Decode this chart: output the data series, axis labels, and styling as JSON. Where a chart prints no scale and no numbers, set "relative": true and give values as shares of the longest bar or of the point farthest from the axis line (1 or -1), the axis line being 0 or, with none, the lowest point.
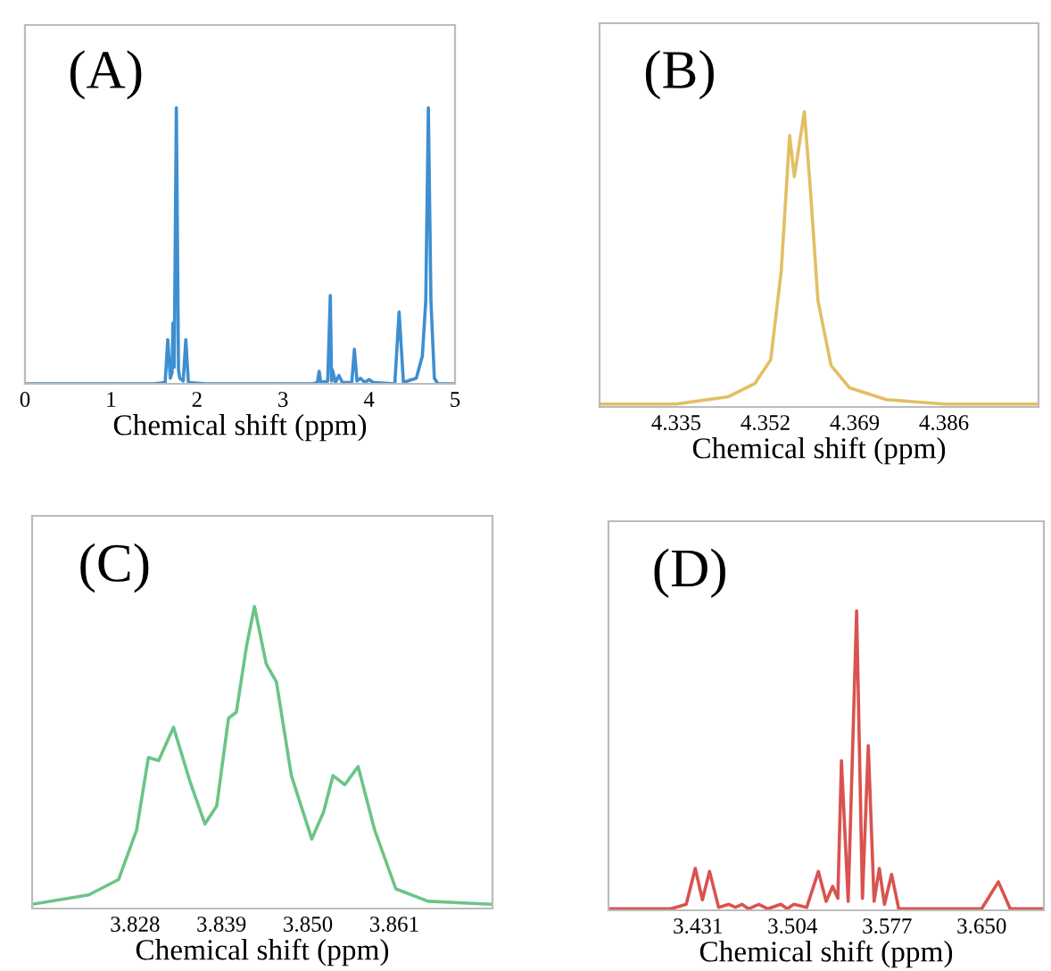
{
  "chart_data": [
    {
      "type": "line",
      "relative": true,
      "annotations": [
        "(A)"
      ],
      "xlabel": "Chemical shift (ppm)",
      "xlim": [
        0,
        5
      ],
      "xticks": [
        0,
        1,
        2,
        3,
        4,
        5
      ],
      "tick_labels": "x",
      "grid": false,
      "legend": false,
      "series": [
        {
          "color": "#3d8fd1",
          "x": [
            0,
            1.5,
            1.63,
            1.66,
            1.69,
            1.71,
            1.72,
            1.735,
            1.76,
            1.785,
            1.8,
            1.84,
            1.87,
            1.9,
            2.1,
            3.35,
            3.4,
            3.42,
            3.44,
            3.52,
            3.55,
            3.565,
            3.575,
            3.61,
            3.65,
            3.69,
            3.8,
            3.83,
            3.86,
            3.9,
            3.95,
            4.0,
            4.05,
            4.3,
            4.35,
            4.4,
            4.55,
            4.62,
            4.66,
            4.69,
            4.72,
            4.76,
            4.8,
            5
          ],
          "values": [
            0,
            0,
            0.005,
            0.16,
            0.02,
            0.04,
            0.22,
            0.06,
            1,
            0.05,
            0.02,
            0.01,
            0.16,
            0.005,
            0,
            0,
            0.005,
            0.045,
            0.005,
            0.01,
            0.32,
            0.01,
            0.05,
            0.005,
            0.03,
            0.005,
            0.005,
            0.125,
            0.01,
            0.02,
            0.005,
            0.015,
            0.005,
            0,
            0.26,
            0.005,
            0.02,
            0.1,
            0.3,
            1,
            0.3,
            0.02,
            0,
            0
          ]
        }
      ]
    },
    {
      "type": "line",
      "relative": true,
      "annotations": [
        "(B)"
      ],
      "xlabel": "Chemical shift (ppm)",
      "xlim": [
        4.3204,
        4.404
      ],
      "xticks": [
        4.335,
        4.352,
        4.369,
        4.386
      ],
      "tick_labels": "x",
      "grid": false,
      "legend": false,
      "series": [
        {
          "color": "#e2bf63",
          "x": [
            4.3204,
            4.335,
            4.345,
            4.35,
            4.353,
            4.355,
            4.3566,
            4.3575,
            4.3594,
            4.3605,
            4.362,
            4.3645,
            4.368,
            4.375,
            4.386,
            4.404
          ],
          "values": [
            0.01,
            0.01,
            0.035,
            0.08,
            0.16,
            0.46,
            0.92,
            0.78,
            1,
            0.75,
            0.36,
            0.14,
            0.065,
            0.025,
            0.01,
            0.01
          ]
        }
      ]
    },
    {
      "type": "line",
      "relative": true,
      "annotations": [
        "(C)"
      ],
      "xlabel": "Chemical shift (ppm)",
      "xlim": [
        3.8149,
        3.8735
      ],
      "xticks": [
        3.828,
        3.839,
        {
          "value": 3.85,
          "label": "3.850"
        },
        3.861
      ],
      "tick_labels": "x",
      "grid": false,
      "legend": false,
      "series": [
        {
          "color": "#6cc486",
          "x": [
            3.8149,
            3.8221,
            3.8259,
            3.8282,
            3.8297,
            3.831,
            3.8329,
            3.835,
            3.8369,
            3.8384,
            3.8399,
            3.8409,
            3.8422,
            3.8432,
            3.8447,
            3.846,
            3.8479,
            3.8505,
            3.852,
            3.8532,
            3.8547,
            3.8564,
            3.8585,
            3.8612,
            3.8653,
            3.8735
          ],
          "values": [
            0.014,
            0.045,
            0.096,
            0.26,
            0.5,
            0.49,
            0.6,
            0.42,
            0.28,
            0.34,
            0.63,
            0.65,
            0.87,
            1,
            0.81,
            0.75,
            0.44,
            0.23,
            0.32,
            0.44,
            0.41,
            0.47,
            0.26,
            0.065,
            0.024,
            0.014
          ]
        }
      ]
    },
    {
      "type": "line",
      "relative": true,
      "annotations": [
        "(D)"
      ],
      "xlabel": "Chemical shift (ppm)",
      "xlim": [
        3.362,
        3.698
      ],
      "xticks": [
        3.431,
        3.504,
        3.577,
        {
          "value": 3.65,
          "label": "3.650"
        }
      ],
      "tick_labels": "x",
      "grid": false,
      "legend": false,
      "series": [
        {
          "color": "#d9534f",
          "x": [
            3.362,
            3.41,
            3.422,
            3.429,
            3.4345,
            3.44,
            3.447,
            3.455,
            3.46,
            3.465,
            3.47,
            3.478,
            3.485,
            3.495,
            3.5,
            3.505,
            3.515,
            3.524,
            3.53,
            3.535,
            3.539,
            3.5418,
            3.547,
            3.5535,
            3.558,
            3.5625,
            3.567,
            3.571,
            3.575,
            3.5805,
            3.586,
            3.65,
            3.6629,
            3.672,
            3.698
          ],
          "values": [
            0.005,
            0.005,
            0.02,
            0.14,
            0.035,
            0.13,
            0.01,
            0.02,
            0.01,
            0.02,
            0.005,
            0.02,
            0.005,
            0.02,
            0.005,
            0.02,
            0.01,
            0.13,
            0.03,
            0.08,
            0.04,
            0.5,
            0.03,
            1,
            0.04,
            0.55,
            0.03,
            0.14,
            0.02,
            0.12,
            0.005,
            0.005,
            0.095,
            0.005,
            0.005
          ]
        }
      ]
    }
  ]
}
